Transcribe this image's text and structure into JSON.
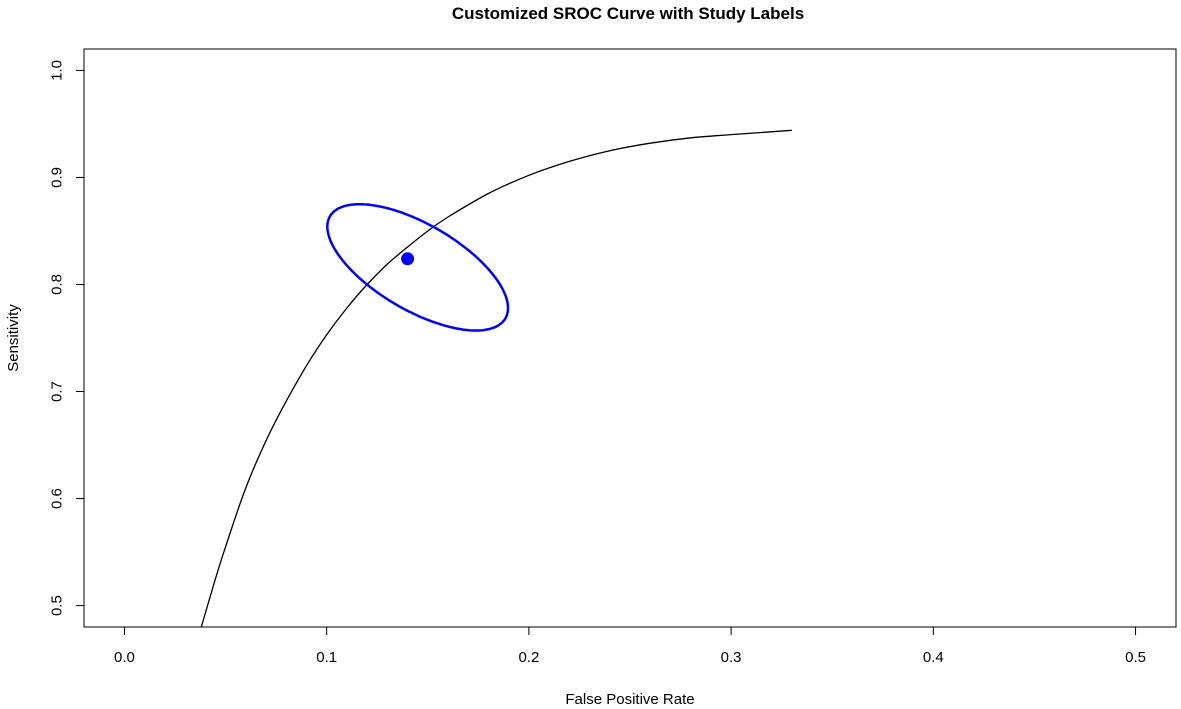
{
  "chart_data": {
    "type": "line",
    "title": "Customized SROC Curve with Study Labels",
    "xlabel": "False Positive Rate",
    "ylabel": "Sensitivity",
    "xlim": [
      -0.02,
      0.52
    ],
    "ylim": [
      0.48,
      1.02
    ],
    "x_ticks": [
      0.0,
      0.1,
      0.2,
      0.3,
      0.4,
      0.5
    ],
    "x_tick_labels": [
      "0.0",
      "0.1",
      "0.2",
      "0.3",
      "0.4",
      "0.5"
    ],
    "y_ticks": [
      0.5,
      0.6,
      0.7,
      0.8,
      0.9,
      1.0
    ],
    "y_tick_labels": [
      "0.5",
      "0.6",
      "0.7",
      "0.8",
      "0.9",
      "1.0"
    ],
    "grid": false,
    "legend": "none",
    "series": [
      {
        "kind": "curve",
        "color": "#000000",
        "x": [
          0.038,
          0.045,
          0.05,
          0.06,
          0.07,
          0.08,
          0.09,
          0.1,
          0.11,
          0.12,
          0.13,
          0.14,
          0.15,
          0.16,
          0.18,
          0.2,
          0.22,
          0.24,
          0.26,
          0.28,
          0.3,
          0.33
        ],
        "y": [
          0.48,
          0.525,
          0.555,
          0.61,
          0.654,
          0.691,
          0.724,
          0.753,
          0.778,
          0.8,
          0.819,
          0.835,
          0.85,
          0.863,
          0.885,
          0.902,
          0.915,
          0.925,
          0.932,
          0.937,
          0.94,
          0.944
        ]
      },
      {
        "kind": "summary-point",
        "color": "#0000ff",
        "x": [
          0.14
        ],
        "y": [
          0.824
        ]
      },
      {
        "kind": "confidence-ellipse",
        "color": "#0000ff",
        "center": [
          0.145,
          0.816
        ],
        "extremes": {
          "x_min": 0.094,
          "x_max": 0.203,
          "y_min": 0.757,
          "y_max": 0.875
        }
      }
    ]
  }
}
